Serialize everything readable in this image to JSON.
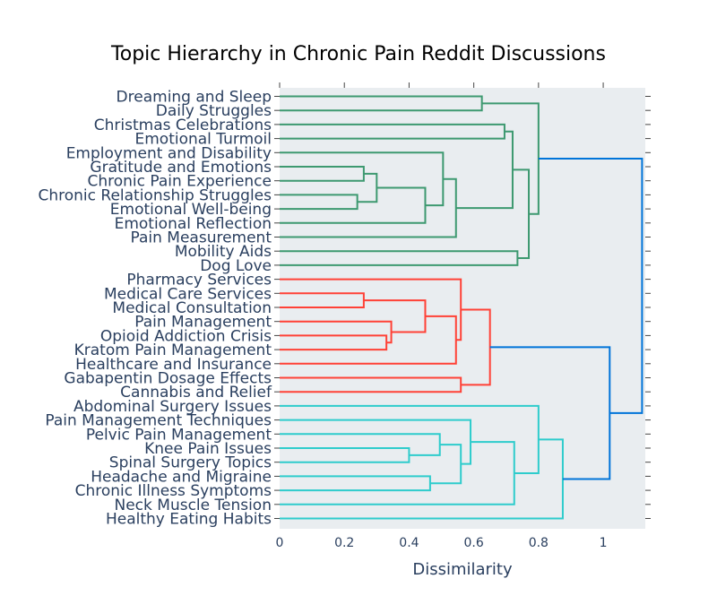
{
  "chart_data": {
    "type": "dendrogram",
    "title": "Topic Hierarchy in Chronic Pain Reddit Discussions",
    "xlabel": "Dissimilarity",
    "xlim": [
      0,
      1.13
    ],
    "xticks": [
      0,
      0.2,
      0.4,
      0.6,
      0.8,
      1
    ],
    "xtick_labels": [
      "0",
      "0.2",
      "0.4",
      "0.6",
      "0.8",
      "1"
    ],
    "colors": {
      "green": "#3d9970",
      "red": "#ff4136",
      "cyan": "#2ecccc",
      "blue": "#0074d9",
      "plot_bg": "#e9edf0",
      "text": "#2a3f5f"
    },
    "leaves": [
      "Dreaming and Sleep",
      "Daily Struggles",
      "Christmas Celebrations",
      "Emotional Turmoil",
      "Employment and Disability",
      "Gratitude and Emotions",
      "Chronic Pain Experience",
      "Chronic Relationship Struggles",
      "Emotional Well-being",
      "Emotional Reflection",
      "Pain Measurement",
      "Mobility Aids",
      "Dog Love",
      "Pharmacy Services",
      "Medical Care Services",
      "Medical Consultation",
      "Pain Management",
      "Opioid Addiction Crisis",
      "Kratom Pain Management",
      "Healthcare and Insurance",
      "Gabapentin Dosage Effects",
      "Cannabis and Relief",
      "Abdominal Surgery Issues",
      "Pain Management Techniques",
      "Pelvic Pain Management",
      "Knee Pain Issues",
      "Spinal Surgery Topics",
      "Headache and Migraine",
      "Chronic Illness Symptoms",
      "Neck Muscle Tension",
      "Healthy Eating Habits"
    ],
    "merges": [
      {
        "a": "L0",
        "b": "L1",
        "h": 0.625,
        "color": "green"
      },
      {
        "a": "L2",
        "b": "L3",
        "h": 0.695,
        "color": "green"
      },
      {
        "a": "L5",
        "b": "L6",
        "h": 0.26,
        "color": "green"
      },
      {
        "a": "L7",
        "b": "L8",
        "h": 0.24,
        "color": "green"
      },
      {
        "a": "M2",
        "b": "M3",
        "h": 0.3,
        "color": "green"
      },
      {
        "a": "M4",
        "b": "L9",
        "h": 0.45,
        "color": "green"
      },
      {
        "a": "L4",
        "b": "M5",
        "h": 0.505,
        "color": "green"
      },
      {
        "a": "M6",
        "b": "L10",
        "h": 0.545,
        "color": "green"
      },
      {
        "a": "M1",
        "b": "M7",
        "h": 0.72,
        "color": "green"
      },
      {
        "a": "L11",
        "b": "L12",
        "h": 0.735,
        "color": "green"
      },
      {
        "a": "M8",
        "b": "M9",
        "h": 0.77,
        "color": "green"
      },
      {
        "a": "M0",
        "b": "M10",
        "h": 0.8,
        "color": "green"
      },
      {
        "a": "L14",
        "b": "L15",
        "h": 0.26,
        "color": "red"
      },
      {
        "a": "L17",
        "b": "L18",
        "h": 0.33,
        "color": "red"
      },
      {
        "a": "L16",
        "b": "M13",
        "h": 0.345,
        "color": "red"
      },
      {
        "a": "M12",
        "b": "M14",
        "h": 0.45,
        "color": "red"
      },
      {
        "a": "M15",
        "b": "L19",
        "h": 0.545,
        "color": "red"
      },
      {
        "a": "L13",
        "b": "M16",
        "h": 0.56,
        "color": "red"
      },
      {
        "a": "L20",
        "b": "L21",
        "h": 0.56,
        "color": "red"
      },
      {
        "a": "M17",
        "b": "M18",
        "h": 0.65,
        "color": "red"
      },
      {
        "a": "L25",
        "b": "L26",
        "h": 0.4,
        "color": "cyan"
      },
      {
        "a": "L27",
        "b": "L28",
        "h": 0.465,
        "color": "cyan"
      },
      {
        "a": "L24",
        "b": "M20",
        "h": 0.495,
        "color": "cyan"
      },
      {
        "a": "M22",
        "b": "M21",
        "h": 0.56,
        "color": "cyan"
      },
      {
        "a": "L23",
        "b": "M23",
        "h": 0.59,
        "color": "cyan"
      },
      {
        "a": "M24",
        "b": "L29",
        "h": 0.725,
        "color": "cyan"
      },
      {
        "a": "L22",
        "b": "M25",
        "h": 0.8,
        "color": "cyan"
      },
      {
        "a": "M26",
        "b": "L30",
        "h": 0.875,
        "color": "cyan"
      },
      {
        "a": "M19",
        "b": "M27",
        "h": 1.02,
        "color": "blue"
      },
      {
        "a": "M11",
        "b": "M28",
        "h": 1.12,
        "color": "blue"
      }
    ]
  }
}
